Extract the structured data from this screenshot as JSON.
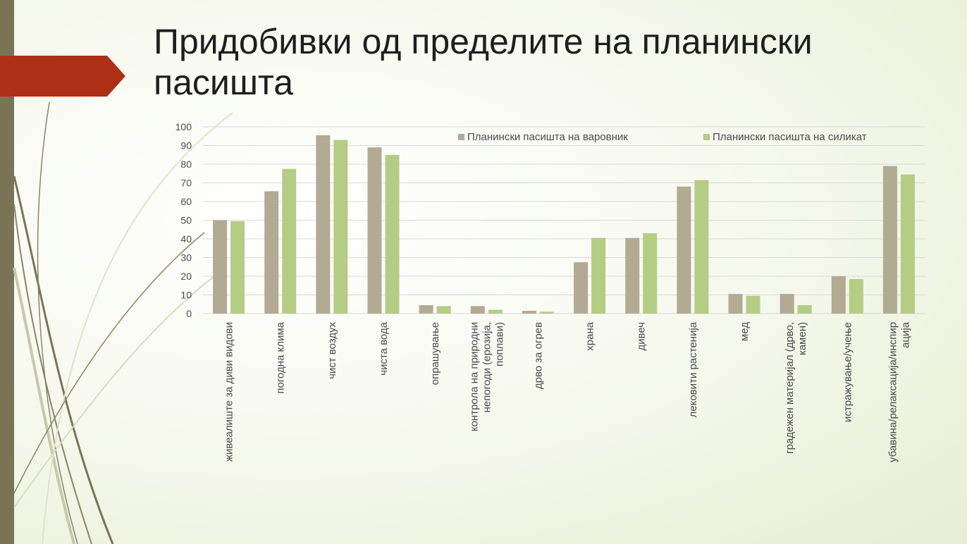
{
  "slide": {
    "title": "Придобивки од пределите на планински пасишта"
  },
  "colors": {
    "series1": "#b2aa92",
    "series2": "#b4cc84",
    "accent_red": "#ad3015",
    "side_bar": "#7a7457"
  },
  "chart_data": {
    "type": "bar",
    "categories": [
      "живеалиште за диви видови",
      "погодна клима",
      "чист воздух",
      "чиста вода",
      "опрашување",
      "контрола на природни непогоди (ерозија, поплави)",
      "дрво за огрев",
      "храна",
      "дивеч",
      "лековити растенија",
      "мед",
      "градежен материјал (дрво, камен)",
      "истражување/учење",
      "убавина/релаксација/инспирација"
    ],
    "series": [
      {
        "name": "Планински пасишта на варовник",
        "values": [
          50,
          65.5,
          95.5,
          89,
          4.5,
          4,
          1.5,
          27.5,
          40.5,
          68,
          10.5,
          10.5,
          20,
          79
        ]
      },
      {
        "name": "Планински пасишта на силикат",
        "values": [
          49.5,
          77.5,
          93,
          85,
          4,
          2,
          1,
          40.5,
          43,
          71.5,
          9.5,
          4.5,
          18.5,
          74.5
        ]
      }
    ],
    "ylim": [
      0,
      100
    ],
    "yticks": [
      0,
      10,
      20,
      30,
      40,
      50,
      60,
      70,
      80,
      90,
      100
    ],
    "grid": true,
    "legend_position": "top-right",
    "xlabel": "",
    "ylabel": ""
  }
}
